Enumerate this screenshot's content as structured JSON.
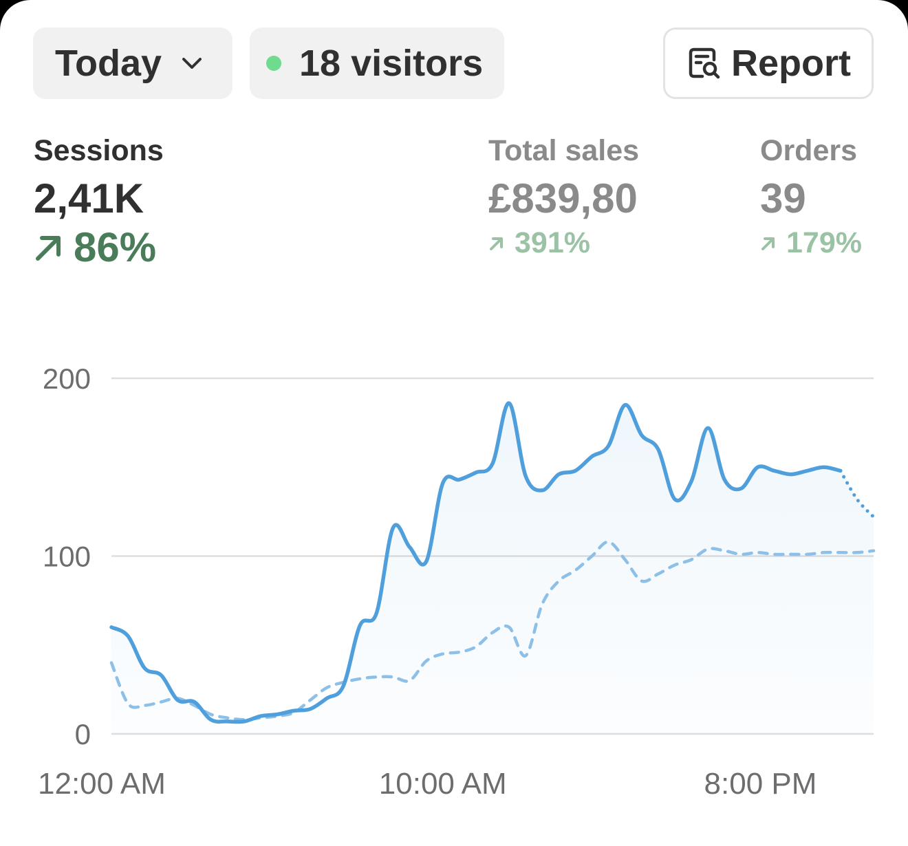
{
  "header": {
    "period_label": "Today",
    "visitors_label": "18 visitors",
    "report_label": "Report"
  },
  "metrics": {
    "sessions": {
      "label": "Sessions",
      "value": "2,41K",
      "change": "86%"
    },
    "total_sales": {
      "label": "Total sales",
      "value": "£839,80",
      "change": "391%"
    },
    "orders": {
      "label": "Orders",
      "value": "39",
      "change": "179%"
    }
  },
  "colors": {
    "current_series": "#4f9fdc",
    "previous_series": "#8cc0e8",
    "positive_change": "#4a7c59",
    "live_dot": "#6fdb8f"
  },
  "icons": {
    "period_dropdown": "chevron-down-icon",
    "live": "live-dot-icon",
    "report": "report-search-icon",
    "change": "arrow-up-right-icon"
  },
  "chart_data": {
    "type": "line",
    "title": "",
    "xlabel": "",
    "ylabel": "",
    "ylim": [
      0,
      200
    ],
    "y_ticks": [
      0,
      100,
      200
    ],
    "x_tick_labels": [
      "12:00 AM",
      "10:00 AM",
      "8:00 PM"
    ],
    "x_range_hours": [
      0,
      23
    ],
    "grid": true,
    "legend": "none",
    "series": [
      {
        "style": "solid",
        "x": [
          0,
          0.5,
          1,
          1.5,
          2,
          2.5,
          3,
          3.5,
          4,
          4.5,
          5,
          5.5,
          6,
          6.5,
          7,
          7.5,
          8,
          8.5,
          9,
          9.5,
          10,
          10.5,
          11,
          11.5,
          12,
          12.5,
          13,
          13.5,
          14,
          14.5,
          15,
          15.5,
          16,
          16.5,
          17,
          17.5,
          18,
          18.5,
          19,
          19.5,
          20,
          20.5,
          21,
          21.5,
          22
        ],
        "y": [
          60,
          55,
          37,
          33,
          19,
          18,
          8,
          7,
          7,
          10,
          11,
          13,
          14,
          20,
          27,
          61,
          68,
          116,
          105,
          97,
          141,
          143,
          147,
          152,
          186,
          145,
          137,
          146,
          148,
          156,
          162,
          185,
          168,
          160,
          132,
          142,
          172,
          143,
          138,
          150,
          148,
          146,
          148,
          150,
          148
        ]
      },
      {
        "style": "dotted",
        "x": [
          22,
          22.5,
          23
        ],
        "y": [
          148,
          132,
          122
        ]
      },
      {
        "style": "dashed",
        "x": [
          0,
          0.5,
          1,
          1.5,
          2,
          2.5,
          3,
          3.5,
          4,
          4.5,
          5,
          5.5,
          6,
          6.5,
          7,
          7.5,
          8,
          8.5,
          9,
          9.5,
          10,
          10.5,
          11,
          11.5,
          12,
          12.5,
          13,
          13.5,
          14,
          14.5,
          15,
          15.5,
          16,
          16.5,
          17,
          17.5,
          18,
          18.5,
          19,
          19.5,
          20,
          20.5,
          21,
          21.5,
          22,
          22.5,
          23
        ],
        "y": [
          40,
          17,
          16,
          18,
          20,
          16,
          11,
          9,
          8,
          9,
          10,
          12,
          19,
          26,
          29,
          31,
          32,
          32,
          30,
          41,
          45,
          46,
          49,
          57,
          60,
          44,
          73,
          86,
          92,
          100,
          108,
          98,
          86,
          90,
          95,
          98,
          104,
          103,
          101,
          102,
          101,
          101,
          101,
          102,
          102,
          102,
          103
        ]
      }
    ]
  }
}
